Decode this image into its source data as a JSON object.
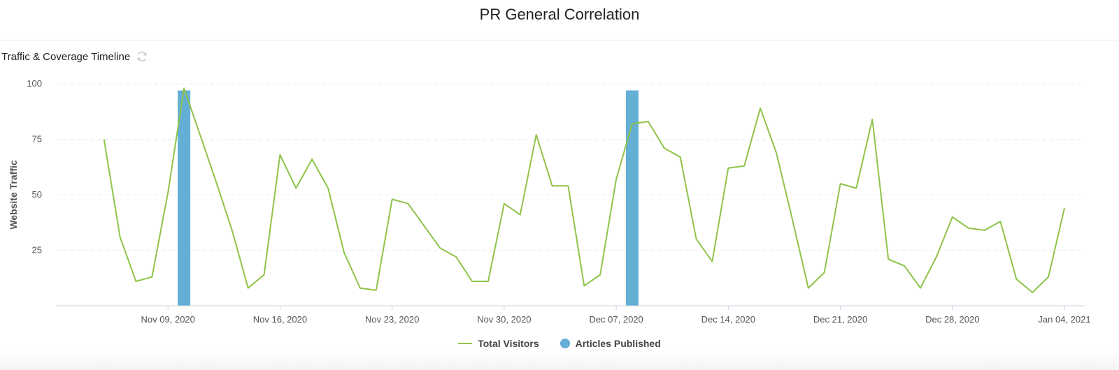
{
  "page": {
    "title": "PR General Correlation"
  },
  "panel": {
    "title": "Traffic & Coverage Timeline",
    "refresh_icon": "refresh-icon"
  },
  "chart_data": {
    "type": "line",
    "ylabel": "Website Traffic",
    "xlabel": "",
    "ylim": [
      0,
      100
    ],
    "yticks": [
      25,
      50,
      75,
      100
    ],
    "xlim": [
      "2020-11-02",
      "2021-01-04"
    ],
    "x_ticks": [
      {
        "date": "2020-11-09",
        "label": "Nov 09, 2020"
      },
      {
        "date": "2020-11-16",
        "label": "Nov 16, 2020"
      },
      {
        "date": "2020-11-23",
        "label": "Nov 23, 2020"
      },
      {
        "date": "2020-11-30",
        "label": "Nov 30, 2020"
      },
      {
        "date": "2020-12-07",
        "label": "Dec 07, 2020"
      },
      {
        "date": "2020-12-14",
        "label": "Dec 14, 2020"
      },
      {
        "date": "2020-12-21",
        "label": "Dec 21, 2020"
      },
      {
        "date": "2020-12-28",
        "label": "Dec 28, 2020"
      },
      {
        "date": "2021-01-04",
        "label": "Jan 04, 2021"
      }
    ],
    "grid": true,
    "legend": "bottom",
    "series": [
      {
        "name": "Total Visitors",
        "type": "line",
        "color": "#8fc349",
        "points": [
          [
            "2020-11-05",
            75
          ],
          [
            "2020-11-06",
            31
          ],
          [
            "2020-11-07",
            11
          ],
          [
            "2020-11-08",
            13
          ],
          [
            "2020-11-09",
            51
          ],
          [
            "2020-11-10",
            98
          ],
          [
            "2020-11-11",
            77
          ],
          [
            "2020-11-12",
            56
          ],
          [
            "2020-11-13",
            34
          ],
          [
            "2020-11-14",
            8
          ],
          [
            "2020-11-15",
            14
          ],
          [
            "2020-11-16",
            68
          ],
          [
            "2020-11-17",
            53
          ],
          [
            "2020-11-18",
            66
          ],
          [
            "2020-11-19",
            53
          ],
          [
            "2020-11-20",
            24
          ],
          [
            "2020-11-21",
            8
          ],
          [
            "2020-11-22",
            7
          ],
          [
            "2020-11-23",
            48
          ],
          [
            "2020-11-24",
            46
          ],
          [
            "2020-11-25",
            36
          ],
          [
            "2020-11-26",
            26
          ],
          [
            "2020-11-27",
            22
          ],
          [
            "2020-11-28",
            11
          ],
          [
            "2020-11-29",
            11
          ],
          [
            "2020-11-30",
            46
          ],
          [
            "2020-12-01",
            41
          ],
          [
            "2020-12-02",
            77
          ],
          [
            "2020-12-03",
            54
          ],
          [
            "2020-12-04",
            54
          ],
          [
            "2020-12-05",
            9
          ],
          [
            "2020-12-06",
            14
          ],
          [
            "2020-12-07",
            57
          ],
          [
            "2020-12-08",
            82
          ],
          [
            "2020-12-09",
            83
          ],
          [
            "2020-12-10",
            71
          ],
          [
            "2020-12-11",
            67
          ],
          [
            "2020-12-12",
            30
          ],
          [
            "2020-12-13",
            20
          ],
          [
            "2020-12-14",
            62
          ],
          [
            "2020-12-15",
            63
          ],
          [
            "2020-12-16",
            89
          ],
          [
            "2020-12-17",
            69
          ],
          [
            "2020-12-18",
            39
          ],
          [
            "2020-12-19",
            8
          ],
          [
            "2020-12-20",
            15
          ],
          [
            "2020-12-21",
            55
          ],
          [
            "2020-12-22",
            53
          ],
          [
            "2020-12-23",
            84
          ],
          [
            "2020-12-24",
            21
          ],
          [
            "2020-12-25",
            18
          ],
          [
            "2020-12-26",
            8
          ],
          [
            "2020-12-27",
            22
          ],
          [
            "2020-12-28",
            40
          ],
          [
            "2020-12-29",
            35
          ],
          [
            "2020-12-30",
            34
          ],
          [
            "2020-12-31",
            38
          ],
          [
            "2021-01-01",
            12
          ],
          [
            "2021-01-02",
            6
          ],
          [
            "2021-01-03",
            13
          ],
          [
            "2021-01-04",
            44
          ]
        ]
      },
      {
        "name": "Articles Published",
        "type": "bar",
        "color": "#64afd5",
        "points": [
          [
            "2020-11-10",
            97
          ],
          [
            "2020-12-08",
            97
          ]
        ]
      }
    ]
  }
}
